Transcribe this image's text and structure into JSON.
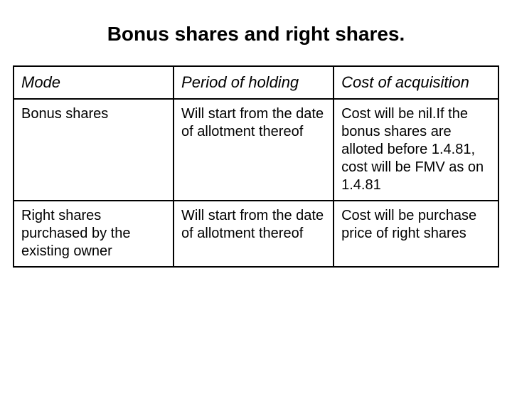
{
  "title": "Bonus shares and right shares.",
  "table": {
    "type": "table",
    "background_color": "#ffffff",
    "border_color": "#000000",
    "border_width": 2,
    "header_fontsize": 22,
    "header_fontstyle": "italic",
    "body_fontsize": 20,
    "text_color": "#000000",
    "columns": [
      "Mode",
      "Period of holding",
      "Cost of acquisition"
    ],
    "column_widths_pct": [
      33,
      33,
      34
    ],
    "rows": [
      [
        "Bonus shares",
        "Will start from the date of allotment thereof",
        "Cost will be nil.If the bonus shares are alloted before 1.4.81, cost will be FMV as on 1.4.81"
      ],
      [
        "Right shares purchased by the existing owner",
        "Will start from the date of allotment thereof",
        "Cost will be purchase price of right shares"
      ]
    ]
  }
}
